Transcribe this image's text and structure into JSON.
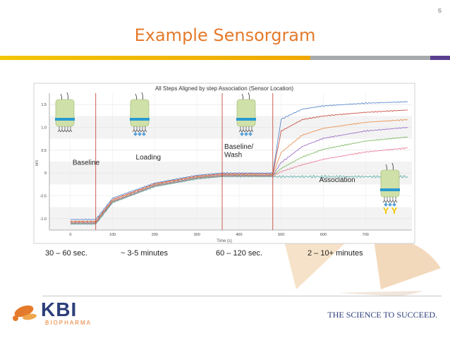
{
  "slide": {
    "number": "6",
    "title": "Example Sensorgram"
  },
  "chart_data": {
    "type": "line",
    "title": "All Steps Aligned by step Association (Sensor Location)",
    "xlabel": "Time (s)",
    "ylabel": "nm",
    "xlim": [
      -50,
      810
    ],
    "ylim": [
      -1.25,
      1.75
    ],
    "x_ticks": [
      0,
      100,
      200,
      300,
      400,
      500,
      600,
      700
    ],
    "y_ticks": [
      1.5,
      1.0,
      0.5,
      0,
      -0.5,
      -1.0
    ],
    "y_tick_labels": [
      "1.5",
      "1.0",
      "0.5",
      "0",
      "-0.5",
      "-1.0"
    ],
    "grid": true,
    "step_boundaries_s": [
      60,
      360,
      480
    ],
    "step_annotations": [
      {
        "label": "Baseline",
        "x": 5,
        "y": 0.18
      },
      {
        "label": "Loading",
        "x": 155,
        "y": 0.3
      },
      {
        "label": "Baseline/",
        "x": 365,
        "y": 0.53
      },
      {
        "label": "Wash",
        "x": 365,
        "y": 0.35
      },
      {
        "label": "Association",
        "x": 590,
        "y": -0.2
      }
    ],
    "series": [
      {
        "color": "#3f77c4",
        "values_x": [
          0,
          60,
          100,
          200,
          300,
          360,
          480,
          500,
          550,
          600,
          700,
          800
        ],
        "values_y": [
          -1.02,
          -1.02,
          -0.55,
          -0.22,
          -0.05,
          0.0,
          0.0,
          1.18,
          1.4,
          1.47,
          1.53,
          1.56
        ]
      },
      {
        "color": "#c0392b",
        "values_x": [
          0,
          60,
          100,
          200,
          300,
          360,
          480,
          500,
          550,
          600,
          700,
          800
        ],
        "values_y": [
          -1.06,
          -1.06,
          -0.58,
          -0.24,
          -0.07,
          -0.02,
          -0.02,
          0.92,
          1.17,
          1.25,
          1.33,
          1.38
        ]
      },
      {
        "color": "#e8823a",
        "values_x": [
          0,
          60,
          100,
          200,
          300,
          360,
          480,
          500,
          550,
          600,
          700,
          800
        ],
        "values_y": [
          -1.07,
          -1.07,
          -0.6,
          -0.25,
          -0.08,
          -0.04,
          -0.04,
          0.45,
          0.83,
          0.98,
          1.11,
          1.17
        ]
      },
      {
        "color": "#8e5bbf",
        "values_x": [
          0,
          60,
          100,
          200,
          300,
          360,
          480,
          500,
          550,
          600,
          700,
          800
        ],
        "values_y": [
          -1.09,
          -1.09,
          -0.62,
          -0.27,
          -0.1,
          -0.05,
          -0.05,
          0.23,
          0.58,
          0.76,
          0.92,
          1.0
        ]
      },
      {
        "color": "#6ab04c",
        "values_x": [
          0,
          60,
          100,
          200,
          300,
          360,
          480,
          500,
          550,
          600,
          700,
          800
        ],
        "values_y": [
          -1.1,
          -1.1,
          -0.63,
          -0.28,
          -0.11,
          -0.06,
          -0.06,
          0.1,
          0.35,
          0.52,
          0.7,
          0.79
        ]
      },
      {
        "color": "#e86a8a",
        "values_x": [
          0,
          60,
          100,
          200,
          300,
          360,
          480,
          500,
          550,
          600,
          700,
          800
        ],
        "values_y": [
          -1.11,
          -1.11,
          -0.64,
          -0.29,
          -0.12,
          -0.07,
          -0.07,
          0.03,
          0.18,
          0.3,
          0.46,
          0.55
        ]
      },
      {
        "color": "#4aa3a0",
        "values_x": [
          0,
          60,
          100,
          200,
          300,
          360,
          480,
          500,
          550,
          600,
          700,
          800
        ],
        "values_y": [
          -1.12,
          -1.12,
          -0.65,
          -0.3,
          -0.13,
          -0.08,
          -0.08,
          -0.08,
          -0.08,
          -0.08,
          -0.08,
          -0.08
        ]
      }
    ]
  },
  "step_durations": [
    "30 – 60 sec.",
    "~ 3-5 minutes",
    "60 – 120 sec.",
    "2 – 10+ minutes"
  ],
  "sensor_icon_letters": "Y Y",
  "colors": {
    "title": "#e47a2b",
    "step_line": "#c0392b",
    "sensor_glass": "#cfe1a8",
    "sensor_band": "#2a9ad0",
    "antibody": "#f2c600",
    "antigen": "#5aa0d8"
  },
  "footer": {
    "logo_text": "KBI",
    "logo_subtext": "BIOPHARMA",
    "tagline": "THE SCIENCE TO SUCCEED."
  }
}
